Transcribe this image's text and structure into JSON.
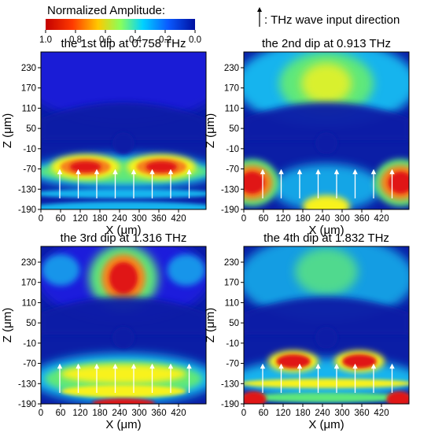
{
  "colorbar": {
    "title": "Normalized Amplitude:",
    "ticks": [
      "1.0",
      "0.8",
      "0.6",
      "0.4",
      "0.2",
      "0.0"
    ]
  },
  "direction_legend": {
    "text": ": THz wave input direction"
  },
  "colors": {
    "c1": "#1a1adc",
    "c2": "#14b4ee",
    "c3": "#5fe87a",
    "c4": "#f8f21a",
    "c5": "#f5821c",
    "c6": "#e01212",
    "deep": "#0b1ea6"
  },
  "axes": {
    "xlabel": "X (μm)",
    "ylabel": "Z (μm)",
    "xticks": [
      "0",
      "60",
      "120",
      "180",
      "240",
      "300",
      "360",
      "420"
    ],
    "yticks": [
      "230",
      "170",
      "110",
      "50",
      "-10",
      "-70",
      "-130",
      "-190"
    ]
  },
  "panels": [
    {
      "title": "the 1st dip at 0.758 THz"
    },
    {
      "title": "the 2nd dip at 0.913 THz"
    },
    {
      "title": "the 3rd dip at 1.316 THz"
    },
    {
      "title": "the 4th dip at 1.832 THz"
    }
  ]
}
